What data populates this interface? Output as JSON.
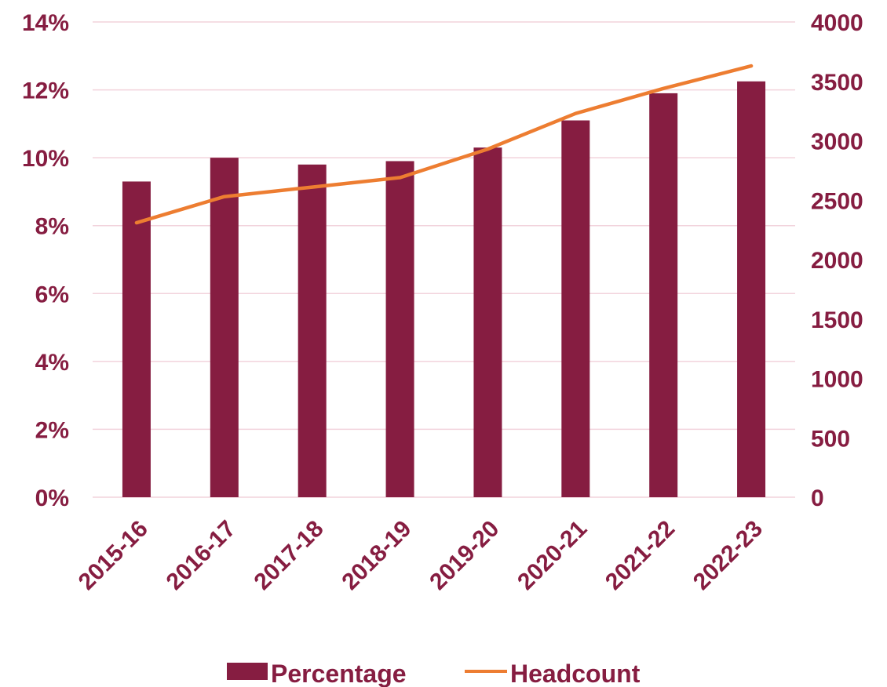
{
  "colors": {
    "bar": "#861D41",
    "line": "#ED7D31",
    "text": "#861D41",
    "grid": "#F2D3DC"
  },
  "chart_data": {
    "type": "bar",
    "categories": [
      "2015-16",
      "2016-17",
      "2017-18",
      "2018-19",
      "2019-20",
      "2020-21",
      "2021-22",
      "2022-23"
    ],
    "series": [
      {
        "name": "Percentage",
        "type": "bar",
        "axis": "left",
        "values": [
          0.093,
          0.1,
          0.098,
          0.099,
          0.103,
          0.111,
          0.119,
          0.1225
        ]
      },
      {
        "name": "Headcount",
        "type": "line",
        "axis": "right",
        "values": [
          2310,
          2530,
          2610,
          2690,
          2930,
          3230,
          3440,
          3630
        ]
      }
    ],
    "y_left": {
      "range": [
        0,
        0.14
      ],
      "ticks": [
        0,
        0.02,
        0.04,
        0.06,
        0.08,
        0.1,
        0.12,
        0.14
      ],
      "tick_labels": [
        "0%",
        "2%",
        "4%",
        "6%",
        "8%",
        "10%",
        "12%",
        "14%"
      ]
    },
    "y_right": {
      "range": [
        0,
        4000
      ],
      "ticks": [
        0,
        500,
        1000,
        1500,
        2000,
        2500,
        3000,
        3500,
        4000
      ],
      "tick_labels": [
        "0",
        "500",
        "1000",
        "1500",
        "2000",
        "2500",
        "3000",
        "3500",
        "4000"
      ]
    },
    "grid": true,
    "legend": {
      "position": "bottom",
      "entries": [
        "Percentage",
        "Headcount"
      ]
    }
  }
}
